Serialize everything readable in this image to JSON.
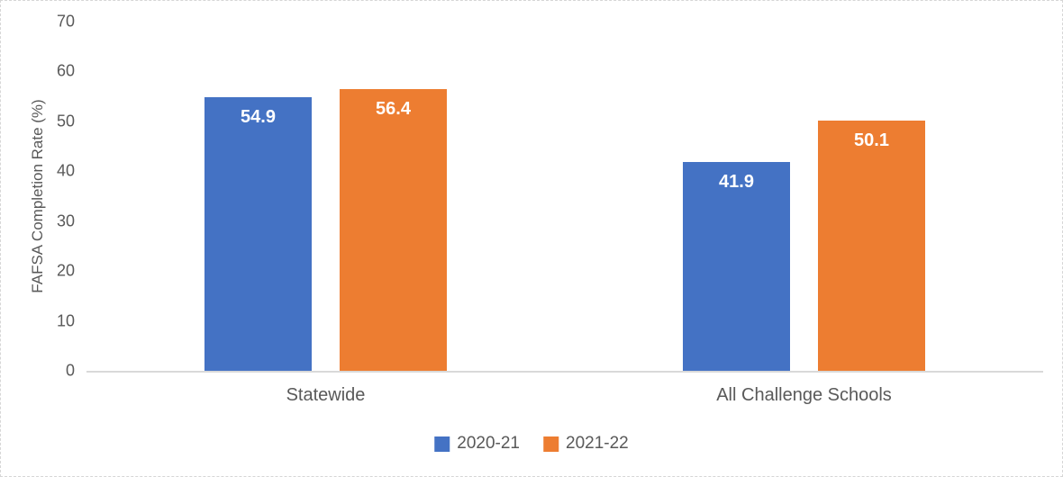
{
  "chart_data": {
    "type": "bar",
    "categories": [
      "Statewide",
      "All Challenge Schools"
    ],
    "series": [
      {
        "name": "2020-21",
        "color": "#4472C4",
        "values": [
          54.9,
          41.9
        ]
      },
      {
        "name": "2021-22",
        "color": "#ED7D31",
        "values": [
          56.4,
          50.1
        ]
      }
    ],
    "data_labels": [
      [
        "54.9",
        "41.9"
      ],
      [
        "56.4",
        "50.1"
      ]
    ],
    "title": "",
    "xlabel": "",
    "ylabel": "FAFSA Completion Rate (%)",
    "ylim": [
      0,
      70
    ],
    "yticks": [
      0,
      10,
      20,
      30,
      40,
      50,
      60,
      70
    ],
    "grid": false,
    "legend_position": "bottom"
  },
  "colors": {
    "axis_line": "#d9d9d9",
    "axis_text": "#595959",
    "bar_label_text": "#ffffff",
    "background": "#ffffff"
  }
}
